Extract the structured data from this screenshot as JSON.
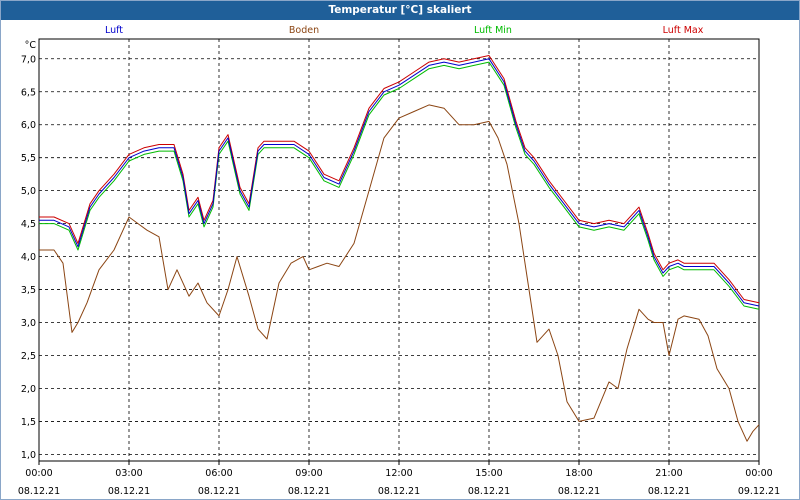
{
  "window": {
    "title": "Temperatur [°C] skaliert"
  },
  "chart_data": {
    "type": "line",
    "title": "Temperatur [°C] skaliert",
    "ylabel": "°C",
    "xlabel": "",
    "ylim": [
      0.9,
      7.3
    ],
    "xlim": [
      0,
      24
    ],
    "grid": true,
    "legend_position": "top",
    "y_ticks": [
      "1,0",
      "1,5",
      "2,0",
      "2,5",
      "3,0",
      "3,5",
      "4,0",
      "4,5",
      "5,0",
      "5,5",
      "6,0",
      "6,5",
      "7,0"
    ],
    "x_ticks": [
      {
        "time": "00:00",
        "date": "08.12.21"
      },
      {
        "time": "03:00",
        "date": "08.12.21"
      },
      {
        "time": "06:00",
        "date": "08.12.21"
      },
      {
        "time": "09:00",
        "date": "08.12.21"
      },
      {
        "time": "12:00",
        "date": "08.12.21"
      },
      {
        "time": "15:00",
        "date": "08.12.21"
      },
      {
        "time": "18:00",
        "date": "08.12.21"
      },
      {
        "time": "21:00",
        "date": "08.12.21"
      },
      {
        "time": "00:00",
        "date": "09.12.21"
      }
    ],
    "series": [
      {
        "name": "Luft",
        "color": "#0000cc",
        "x": [
          0,
          0.5,
          1,
          1.3,
          1.7,
          2,
          2.5,
          3,
          3.5,
          4,
          4.5,
          4.8,
          5,
          5.3,
          5.5,
          5.8,
          6,
          6.3,
          6.7,
          7,
          7.3,
          7.5,
          7.8,
          8,
          8.5,
          9,
          9.5,
          10,
          10.5,
          11,
          11.5,
          12,
          12.5,
          13,
          13.5,
          14,
          14.5,
          15,
          15.5,
          15.9,
          16.2,
          16.5,
          17,
          17.5,
          18,
          18.5,
          19,
          19.5,
          20,
          20.3,
          20.5,
          20.8,
          21,
          21.3,
          21.5,
          22,
          22.5,
          23,
          23.5,
          24
        ],
        "values": [
          4.55,
          4.55,
          4.45,
          4.15,
          4.75,
          4.95,
          5.2,
          5.5,
          5.6,
          5.65,
          5.65,
          5.2,
          4.65,
          4.85,
          4.5,
          4.8,
          5.6,
          5.8,
          5.0,
          4.75,
          5.6,
          5.7,
          5.7,
          5.7,
          5.7,
          5.55,
          5.2,
          5.1,
          5.6,
          6.2,
          6.5,
          6.6,
          6.75,
          6.9,
          6.95,
          6.9,
          6.95,
          7.0,
          6.65,
          6.0,
          5.6,
          5.45,
          5.1,
          4.8,
          4.5,
          4.45,
          4.5,
          4.45,
          4.7,
          4.3,
          4.0,
          3.75,
          3.85,
          3.9,
          3.85,
          3.85,
          3.85,
          3.6,
          3.3,
          3.25
        ]
      },
      {
        "name": "Boden",
        "color": "#8b4513",
        "x": [
          0,
          0.5,
          0.8,
          1.1,
          1.3,
          1.6,
          2,
          2.5,
          3,
          3.3,
          3.6,
          4,
          4.3,
          4.6,
          5,
          5.3,
          5.6,
          6,
          6.3,
          6.6,
          7,
          7.3,
          7.6,
          8,
          8.4,
          8.8,
          9,
          9.3,
          9.6,
          10,
          10.5,
          11,
          11.5,
          12,
          12.5,
          13,
          13.5,
          14,
          14.5,
          15,
          15.3,
          15.6,
          16,
          16.3,
          16.6,
          17,
          17.3,
          17.6,
          18,
          18.5,
          19,
          19.3,
          19.6,
          20,
          20.3,
          20.5,
          20.8,
          21,
          21.3,
          21.5,
          22,
          22.3,
          22.6,
          23,
          23.3,
          23.6,
          23.8,
          24
        ],
        "values": [
          4.1,
          4.1,
          3.9,
          2.85,
          3.0,
          3.3,
          3.8,
          4.1,
          4.6,
          4.5,
          4.4,
          4.3,
          3.5,
          3.8,
          3.4,
          3.6,
          3.3,
          3.1,
          3.5,
          4.0,
          3.4,
          2.9,
          2.75,
          3.6,
          3.9,
          4.0,
          3.8,
          3.85,
          3.9,
          3.85,
          4.2,
          5.0,
          5.8,
          6.1,
          6.2,
          6.3,
          6.25,
          6.0,
          6.0,
          6.05,
          5.8,
          5.4,
          4.5,
          3.6,
          2.7,
          2.9,
          2.5,
          1.8,
          1.5,
          1.55,
          2.1,
          2.0,
          2.6,
          3.2,
          3.05,
          3.0,
          3.0,
          2.5,
          3.05,
          3.1,
          3.05,
          2.8,
          2.3,
          2.0,
          1.5,
          1.2,
          1.35,
          1.45
        ]
      },
      {
        "name": "Luft Min",
        "color": "#00bb00",
        "x": [
          0,
          0.5,
          1,
          1.3,
          1.7,
          2,
          2.5,
          3,
          3.5,
          4,
          4.5,
          4.8,
          5,
          5.3,
          5.5,
          5.8,
          6,
          6.3,
          6.7,
          7,
          7.3,
          7.5,
          7.8,
          8,
          8.5,
          9,
          9.5,
          10,
          10.5,
          11,
          11.5,
          12,
          12.5,
          13,
          13.5,
          14,
          14.5,
          15,
          15.5,
          15.9,
          16.2,
          16.5,
          17,
          17.5,
          18,
          18.5,
          19,
          19.5,
          20,
          20.3,
          20.5,
          20.8,
          21,
          21.3,
          21.5,
          22,
          22.5,
          23,
          23.5,
          24
        ],
        "values": [
          4.5,
          4.5,
          4.4,
          4.1,
          4.7,
          4.9,
          5.15,
          5.45,
          5.55,
          5.6,
          5.6,
          5.15,
          4.6,
          4.8,
          4.45,
          4.75,
          5.55,
          5.75,
          4.95,
          4.7,
          5.55,
          5.65,
          5.65,
          5.65,
          5.65,
          5.5,
          5.15,
          5.05,
          5.55,
          6.15,
          6.45,
          6.55,
          6.7,
          6.85,
          6.9,
          6.85,
          6.9,
          6.95,
          6.6,
          5.95,
          5.55,
          5.4,
          5.05,
          4.75,
          4.45,
          4.4,
          4.45,
          4.4,
          4.65,
          4.25,
          3.95,
          3.7,
          3.8,
          3.85,
          3.8,
          3.8,
          3.8,
          3.55,
          3.25,
          3.2
        ]
      },
      {
        "name": "Luft Max",
        "color": "#cc0000",
        "x": [
          0,
          0.5,
          1,
          1.3,
          1.7,
          2,
          2.5,
          3,
          3.5,
          4,
          4.5,
          4.8,
          5,
          5.3,
          5.5,
          5.8,
          6,
          6.3,
          6.7,
          7,
          7.3,
          7.5,
          7.8,
          8,
          8.5,
          9,
          9.5,
          10,
          10.5,
          11,
          11.5,
          12,
          12.5,
          13,
          13.5,
          14,
          14.5,
          15,
          15.5,
          15.9,
          16.2,
          16.5,
          17,
          17.5,
          18,
          18.5,
          19,
          19.5,
          20,
          20.3,
          20.5,
          20.8,
          21,
          21.3,
          21.5,
          22,
          22.5,
          23,
          23.5,
          24
        ],
        "values": [
          4.6,
          4.6,
          4.5,
          4.2,
          4.8,
          5.0,
          5.25,
          5.55,
          5.65,
          5.7,
          5.7,
          5.25,
          4.7,
          4.9,
          4.55,
          4.85,
          5.65,
          5.85,
          5.05,
          4.8,
          5.65,
          5.75,
          5.75,
          5.75,
          5.75,
          5.6,
          5.25,
          5.15,
          5.65,
          6.25,
          6.55,
          6.65,
          6.8,
          6.95,
          7.0,
          6.95,
          7.0,
          7.05,
          6.7,
          6.05,
          5.65,
          5.5,
          5.15,
          4.85,
          4.55,
          4.5,
          4.55,
          4.5,
          4.75,
          4.35,
          4.05,
          3.8,
          3.9,
          3.95,
          3.9,
          3.9,
          3.9,
          3.65,
          3.35,
          3.3
        ]
      }
    ]
  }
}
